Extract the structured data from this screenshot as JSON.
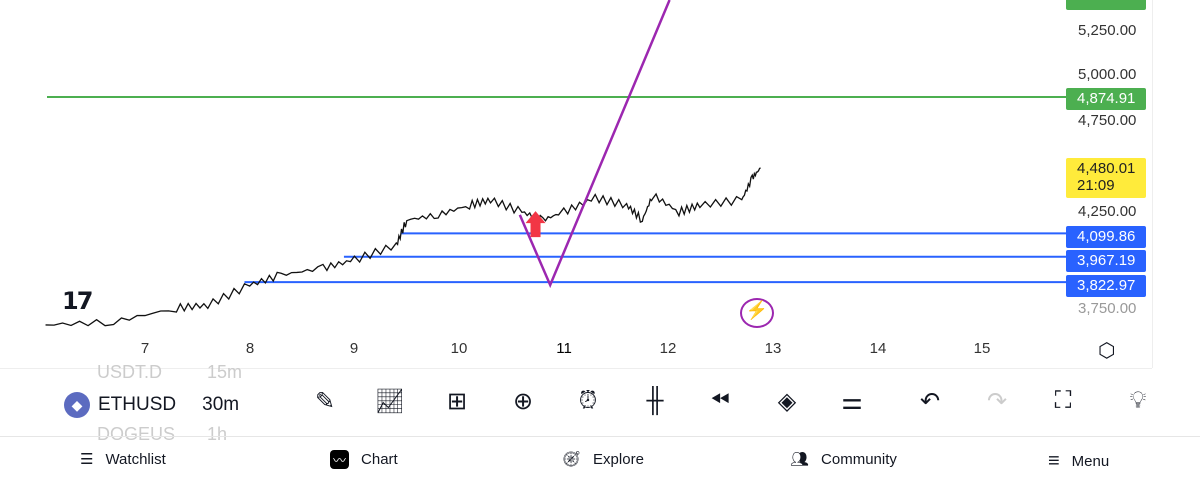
{
  "colors": {
    "green": "#4caf50",
    "blue": "#2962ff",
    "yellow": "#ffeb3b",
    "purple": "#9c27b0",
    "red": "#f23645"
  },
  "price_axis": {
    "labels": [
      "5,250.00",
      "5,000.00",
      "4,750.00",
      "4,250.00"
    ],
    "partial_bottom": "3,750.00"
  },
  "price_tags": {
    "green": "4,874.91",
    "current_price": "4,480.01",
    "countdown": "21:09",
    "blue1": "4,099.86",
    "blue2": "3,967.19",
    "blue3": "3,822.97"
  },
  "time_axis": [
    "7",
    "8",
    "9",
    "10",
    "11",
    "12",
    "13",
    "14",
    "15"
  ],
  "chart_data": {
    "type": "line",
    "symbol": "ETHUSD",
    "interval": "30m",
    "x": [
      6.05,
      6.7,
      7.3,
      7.6,
      8.0,
      8.3,
      8.7,
      9.0,
      9.4,
      9.5,
      9.8,
      10.1,
      10.3,
      10.6,
      10.8,
      11.0,
      11.3,
      11.6,
      11.75,
      11.85,
      12.1,
      12.3,
      12.7,
      12.8,
      12.88
    ],
    "y": [
      3580,
      3597,
      3676,
      3693,
      3807,
      3864,
      3903,
      3949,
      4034,
      4176,
      4205,
      4261,
      4290,
      4222,
      4176,
      4222,
      4301,
      4261,
      4176,
      4318,
      4222,
      4261,
      4290,
      4415,
      4472
    ],
    "hlines": [
      {
        "price": 4874.91,
        "color": "green"
      },
      {
        "price": 4099.86,
        "color": "blue",
        "from": 9.45
      },
      {
        "price": 3967.19,
        "color": "blue",
        "from": 8.9
      },
      {
        "price": 3822.97,
        "color": "blue",
        "from": 7.95
      }
    ],
    "drawn_line": {
      "color": "purple",
      "points": [
        [
          10.58,
          4205
        ],
        [
          10.87,
          3807
        ],
        [
          12.01,
          5426
        ]
      ]
    },
    "arrow_up": {
      "x": 10.73,
      "price": 4170,
      "color": "red"
    }
  },
  "toolbar": {
    "symbol": "ETHUSD",
    "interval": "30m",
    "prev_symbol": "USDT.D",
    "prev_interval": "15m",
    "next_symbol": "DOGEUS",
    "next_interval": "1h",
    "icons": [
      "draw-icon",
      "indicators-icon",
      "templates-icon",
      "add-icon",
      "alert-icon",
      "candles-icon",
      "replay-icon",
      "layers-icon",
      "settings-icon",
      "undo-icon",
      "redo-icon",
      "fullscreen-icon",
      "ideas-icon"
    ]
  },
  "nav": {
    "watchlist": "Watchlist",
    "chart": "Chart",
    "explore": "Explore",
    "community": "Community",
    "menu": "Menu"
  },
  "logo": "TV"
}
